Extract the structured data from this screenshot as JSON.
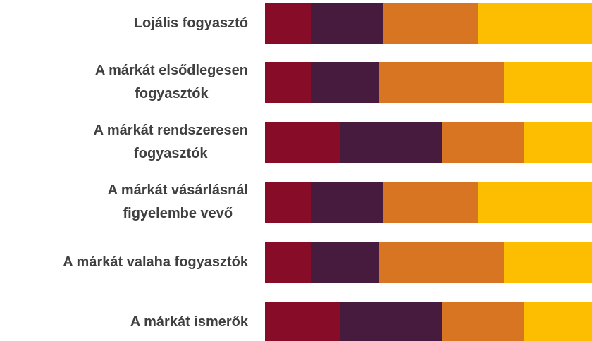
{
  "chart_data": {
    "type": "stacked_barh",
    "categories": [
      "Lojális fogyasztó",
      "A márkát elsődlegesen\nfogyasztók",
      "A márkát rendszeresen\nfogyasztók",
      "A márkát vásárlásnál\nfigyelembe vevő",
      "A márkát valaha fogyasztók",
      "A márkát ismerők"
    ],
    "series": [
      {
        "color": "#870c28",
        "values": [
          14,
          14,
          23,
          14,
          14,
          23
        ]
      },
      {
        "color": "#461b3d",
        "values": [
          22,
          21,
          31,
          22,
          21,
          31
        ]
      },
      {
        "color": "#d87523",
        "values": [
          29,
          38,
          25,
          29,
          38,
          25
        ]
      },
      {
        "color": "#fdbd00",
        "values": [
          35,
          27,
          21,
          35,
          27,
          21
        ]
      }
    ],
    "xlim": [
      0,
      100
    ]
  }
}
